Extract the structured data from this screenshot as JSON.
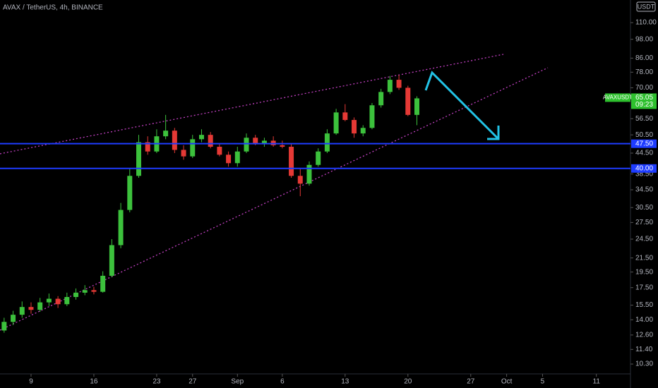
{
  "chart_data": {
    "type": "candlestick",
    "title": "AVAX / TetherUS, 4h, BINANCE",
    "currency": "USDT",
    "log_scale": true,
    "up_color": "#3cc13c",
    "down_color": "#e53935",
    "x": [
      -3,
      -2,
      -1,
      0,
      1,
      2,
      3,
      4,
      5,
      6,
      7,
      8,
      9,
      10,
      11,
      12,
      13,
      14,
      15,
      16,
      17,
      18,
      19,
      20,
      21,
      22,
      23,
      24,
      25,
      26,
      27,
      28,
      29,
      30,
      31,
      32,
      33,
      34,
      35,
      36,
      37,
      38,
      39,
      40,
      41,
      42,
      43
    ],
    "open": [
      13.0,
      13.8,
      14.5,
      15.3,
      15.0,
      15.8,
      16.2,
      15.6,
      16.4,
      16.9,
      17.2,
      17.0,
      19.0,
      23.5,
      30.0,
      38.0,
      48.0,
      45.0,
      50.0,
      52.0,
      45.5,
      43.5,
      49.0,
      50.5,
      46.5,
      44.0,
      41.5,
      45.0,
      49.5,
      47.5,
      48.5,
      47.0,
      46.5,
      38.0,
      36.0,
      41.0,
      45.0,
      51.0,
      59.0,
      56.0,
      51.0,
      53.0,
      62.0,
      68.0,
      74.0,
      70.0,
      58.0
    ],
    "high": [
      14.2,
      14.9,
      15.9,
      15.8,
      16.3,
      16.8,
      16.5,
      16.9,
      17.4,
      17.8,
      17.6,
      19.6,
      24.5,
      31.5,
      40.0,
      50.5,
      50.0,
      52.5,
      58.0,
      53.0,
      47.0,
      50.5,
      52.5,
      51.5,
      47.5,
      45.0,
      46.5,
      51.0,
      50.5,
      49.5,
      50.0,
      48.5,
      47.5,
      40.0,
      42.0,
      46.0,
      52.5,
      60.5,
      62.5,
      57.0,
      54.0,
      63.0,
      69.5,
      76.0,
      76.5,
      71.0,
      66.0
    ],
    "low": [
      12.8,
      13.5,
      14.2,
      14.6,
      14.8,
      15.4,
      15.2,
      15.4,
      16.1,
      16.6,
      16.7,
      16.9,
      18.8,
      23.0,
      29.5,
      37.5,
      44.0,
      44.5,
      49.0,
      44.5,
      42.5,
      43.0,
      48.0,
      46.0,
      43.5,
      40.5,
      40.5,
      44.5,
      47.0,
      46.5,
      46.5,
      46.0,
      37.5,
      33.0,
      35.5,
      40.5,
      44.5,
      50.5,
      55.5,
      49.5,
      50.0,
      52.5,
      61.0,
      67.0,
      69.0,
      57.5,
      54.0
    ],
    "close": [
      13.8,
      14.5,
      15.3,
      15.0,
      15.8,
      16.2,
      15.6,
      16.4,
      16.9,
      17.2,
      17.0,
      19.0,
      23.5,
      30.0,
      38.0,
      48.0,
      45.0,
      50.0,
      52.0,
      45.5,
      43.5,
      49.0,
      50.5,
      46.5,
      44.0,
      41.5,
      45.0,
      49.5,
      47.5,
      48.5,
      47.0,
      46.5,
      38.0,
      36.0,
      41.0,
      45.0,
      51.0,
      59.0,
      56.0,
      51.0,
      53.0,
      62.0,
      68.0,
      74.0,
      70.0,
      58.0,
      65.05
    ],
    "xlim": [
      -3.46,
      66.8
    ],
    "xticks": [
      {
        "value": 0,
        "label": "9"
      },
      {
        "value": 7,
        "label": "16"
      },
      {
        "value": 14,
        "label": "23"
      },
      {
        "value": 18,
        "label": "27"
      },
      {
        "value": 23,
        "label": "Sep"
      },
      {
        "value": 28,
        "label": "6"
      },
      {
        "value": 35,
        "label": "13"
      },
      {
        "value": 42,
        "label": "20"
      },
      {
        "value": 49,
        "label": "27"
      },
      {
        "value": 53,
        "label": "Oct"
      },
      {
        "value": 57,
        "label": "5"
      },
      {
        "value": 63,
        "label": "11"
      }
    ],
    "ylim": [
      9.62,
      128.7
    ],
    "yticks": [
      {
        "value": 10.3,
        "label": "10.30"
      },
      {
        "value": 11.4,
        "label": "11.40"
      },
      {
        "value": 12.6,
        "label": "12.60"
      },
      {
        "value": 14,
        "label": "14.00"
      },
      {
        "value": 15.5,
        "label": "15.50"
      },
      {
        "value": 17.5,
        "label": "17.50"
      },
      {
        "value": 19.5,
        "label": "19.50"
      },
      {
        "value": 21.5,
        "label": "21.50"
      },
      {
        "value": 24.5,
        "label": "24.50"
      },
      {
        "value": 27.5,
        "label": "27.50"
      },
      {
        "value": 30.5,
        "label": "30.50"
      },
      {
        "value": 34.5,
        "label": "34.50"
      },
      {
        "value": 38.5,
        "label": "38.50"
      },
      {
        "value": 44.5,
        "label": "44.50"
      },
      {
        "value": 50.5,
        "label": "50.50"
      },
      {
        "value": 56.5,
        "label": "56.50"
      },
      {
        "value": 70,
        "label": "70.00"
      },
      {
        "value": 78,
        "label": "78.00"
      },
      {
        "value": 86,
        "label": "86.00"
      },
      {
        "value": 98,
        "label": "98.00"
      },
      {
        "value": 110,
        "label": "110.00"
      }
    ],
    "horizontal_lines": [
      {
        "value": 47.5,
        "label": "47.50",
        "color": "#1e3cff"
      },
      {
        "value": 40,
        "label": "40.00",
        "color": "#1e3cff"
      }
    ],
    "last_price": {
      "symbol": "AVAXUSDT",
      "value": 65.05,
      "countdown": "09:23",
      "color": "#2ec02e"
    }
  }
}
